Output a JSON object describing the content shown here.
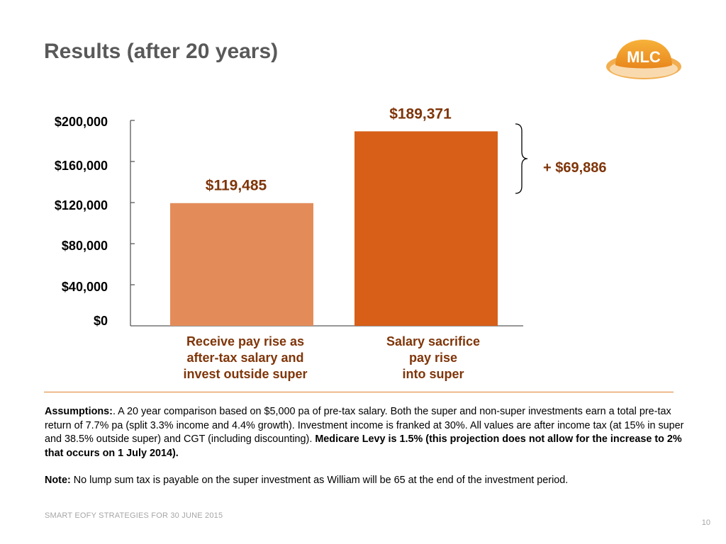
{
  "slide": {
    "title": "Results (after 20 years)",
    "logo_text": "MLC",
    "footer": "SMART EOFY STRATEGIES FOR 30 JUNE 2015",
    "page_number": "10"
  },
  "chart_data": {
    "type": "bar",
    "title": "",
    "xlabel": "",
    "ylabel": "",
    "ylim": [
      0,
      200000
    ],
    "yticks": [
      0,
      40000,
      80000,
      120000,
      160000,
      200000
    ],
    "ytick_labels": [
      "$0",
      "$40,000",
      "$80,000",
      "$120,000",
      "$160,000",
      "$200,000"
    ],
    "grid": false,
    "categories": [
      [
        "Receive pay rise as",
        "after-tax salary and",
        "invest outside super"
      ],
      [
        "Salary sacrifice",
        "pay rise",
        "into super"
      ]
    ],
    "values": [
      119485,
      189371
    ],
    "data_labels": [
      "$119,485",
      "$189,371"
    ],
    "bar_colors": [
      "#e38c5a",
      "#d75f18"
    ],
    "annotation": "+ $69,886",
    "colors": {
      "label_text": "#7f3509",
      "axis": "#595959",
      "accent": "#e0822f"
    }
  },
  "assumptions": {
    "label": "Assumptions:",
    "text": ". A 20 year comparison based on $5,000 pa of pre-tax salary. Both the super and non-super investments earn a total pre-tax return of 7.7% pa (split 3.3% income and 4.4% growth). Investment income is franked at 30%. All values are after income tax (at 15% in super and 38.5% outside super) and CGT (including discounting). ",
    "medicare": "Medicare Levy is 1.5% (this projection does not allow for the increase to 2% that occurs on 1 July 2014)."
  },
  "note": {
    "label": "Note:",
    "text": " No lump sum tax is payable on the super investment as William will be 65 at the end of the investment period."
  }
}
